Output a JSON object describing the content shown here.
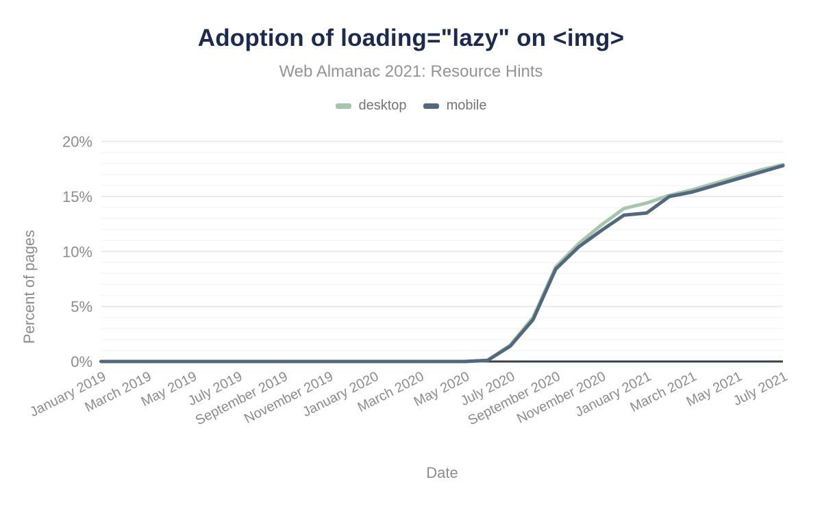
{
  "chart_data": {
    "type": "line",
    "title": "Adoption of loading=\"lazy\" on <img>",
    "subtitle": "Web Almanac 2021: Resource Hints",
    "xlabel": "Date",
    "ylabel": "Percent of pages",
    "legend_position": "top",
    "grid": "horizontal",
    "ylim": [
      0,
      20.66
    ],
    "y_ticks": [
      0,
      5,
      10,
      15,
      20
    ],
    "y_tick_suffix": "%",
    "minor_grid_step": 1,
    "x": [
      "January 2019",
      "February 2019",
      "March 2019",
      "April 2019",
      "May 2019",
      "June 2019",
      "July 2019",
      "August 2019",
      "September 2019",
      "October 2019",
      "November 2019",
      "December 2019",
      "January 2020",
      "February 2020",
      "March 2020",
      "April 2020",
      "May 2020",
      "June 2020",
      "July 2020",
      "August 2020",
      "September 2020",
      "October 2020",
      "November 2020",
      "December 2020",
      "January 2021",
      "February 2021",
      "March 2021",
      "April 2021",
      "May 2021",
      "June 2021",
      "July 2021"
    ],
    "x_tick_labels": [
      "January 2019",
      "March 2019",
      "May 2019",
      "July 2019",
      "September 2019",
      "November 2019",
      "January 2020",
      "March 2020",
      "May 2020",
      "July 2020",
      "September 2020",
      "November 2020",
      "January 2021",
      "March 2021",
      "May 2021",
      "July 2021"
    ],
    "series": [
      {
        "name": "desktop",
        "color": "#a6c7ae",
        "values": [
          0,
          0,
          0,
          0,
          0,
          0,
          0,
          0,
          0,
          0,
          0,
          0,
          0,
          0,
          0,
          0,
          0,
          0.1,
          1.5,
          4.0,
          8.6,
          10.7,
          12.4,
          13.9,
          14.4,
          15.1,
          15.6,
          16.2,
          16.8,
          17.4,
          17.9
        ]
      },
      {
        "name": "mobile",
        "color": "#52687f",
        "values": [
          0,
          0,
          0,
          0,
          0,
          0,
          0,
          0,
          0,
          0,
          0,
          0,
          0,
          0,
          0,
          0,
          0,
          0.1,
          1.4,
          3.8,
          8.4,
          10.4,
          11.9,
          13.3,
          13.5,
          15.0,
          15.4,
          16.0,
          16.6,
          17.2,
          17.8
        ]
      }
    ],
    "colors": {
      "title": "#1b2a4e",
      "subtitle": "#949494",
      "legend_text": "#757575",
      "tick_label": "#8c8c8c",
      "axis_title": "#8c8c8c",
      "axis_line": "#363e47",
      "grid_major": "#eaeaea",
      "grid_minor": "#f5f5f5",
      "background": "#ffffff"
    }
  }
}
